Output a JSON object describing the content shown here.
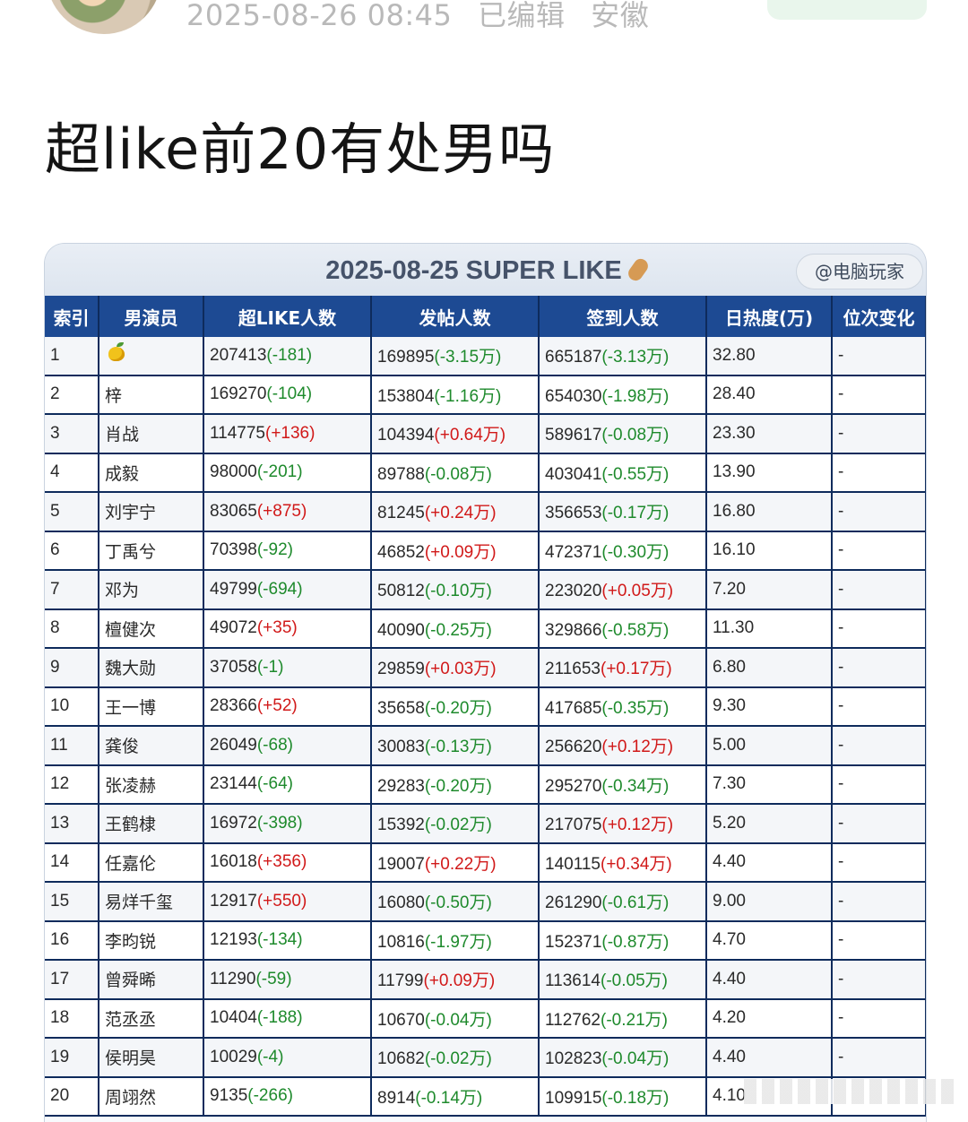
{
  "post": {
    "timestamp": "2025-08-26 08:45",
    "edited": "已编辑",
    "location": "安徽",
    "title": "超like前20有处男吗"
  },
  "card": {
    "banner_title": "2025-08-25 SUPER LIKE",
    "tag": "@电脑玩家",
    "headers": [
      "索引",
      "男演员",
      "超LIKE人数",
      "发帖人数",
      "签到人数",
      "日热度(万)",
      "位次变化"
    ],
    "rows": [
      {
        "idx": "1",
        "name": "",
        "icon": "mango-icon",
        "like": "207413",
        "like_d": "(-181)",
        "post": "169895",
        "post_d": "(-3.15万)",
        "sign": "665187",
        "sign_d": "(-3.13万)",
        "heat": "32.80",
        "rank": "-"
      },
      {
        "idx": "2",
        "name": "梓",
        "like": "169270",
        "like_d": "(-104)",
        "post": "153804",
        "post_d": "(-1.16万)",
        "sign": "654030",
        "sign_d": "(-1.98万)",
        "heat": "28.40",
        "rank": "-"
      },
      {
        "idx": "3",
        "name": "肖战",
        "like": "114775",
        "like_d": "(+136)",
        "post": "104394",
        "post_d": "(+0.64万)",
        "sign": "589617",
        "sign_d": "(-0.08万)",
        "heat": "23.30",
        "rank": "-"
      },
      {
        "idx": "4",
        "name": "成毅",
        "like": "98000",
        "like_d": "(-201)",
        "post": "89788",
        "post_d": "(-0.08万)",
        "sign": "403041",
        "sign_d": "(-0.55万)",
        "heat": "13.90",
        "rank": "-"
      },
      {
        "idx": "5",
        "name": "刘宇宁",
        "like": "83065",
        "like_d": "(+875)",
        "post": "81245",
        "post_d": "(+0.24万)",
        "sign": "356653",
        "sign_d": "(-0.17万)",
        "heat": "16.80",
        "rank": "-"
      },
      {
        "idx": "6",
        "name": "丁禹兮",
        "like": "70398",
        "like_d": "(-92)",
        "post": "46852",
        "post_d": "(+0.09万)",
        "sign": "472371",
        "sign_d": "(-0.30万)",
        "heat": "16.10",
        "rank": "-"
      },
      {
        "idx": "7",
        "name": "邓为",
        "like": "49799",
        "like_d": "(-694)",
        "post": "50812",
        "post_d": "(-0.10万)",
        "sign": "223020",
        "sign_d": "(+0.05万)",
        "heat": "7.20",
        "rank": "-"
      },
      {
        "idx": "8",
        "name": "檀健次",
        "like": "49072",
        "like_d": "(+35)",
        "post": "40090",
        "post_d": "(-0.25万)",
        "sign": "329866",
        "sign_d": "(-0.58万)",
        "heat": "11.30",
        "rank": "-"
      },
      {
        "idx": "9",
        "name": "魏大勋",
        "like": "37058",
        "like_d": "(-1)",
        "post": "29859",
        "post_d": "(+0.03万)",
        "sign": "211653",
        "sign_d": "(+0.17万)",
        "heat": "6.80",
        "rank": "-"
      },
      {
        "idx": "10",
        "name": "王一博",
        "like": "28366",
        "like_d": "(+52)",
        "post": "35658",
        "post_d": "(-0.20万)",
        "sign": "417685",
        "sign_d": "(-0.35万)",
        "heat": "9.30",
        "rank": "-"
      },
      {
        "idx": "11",
        "name": "龚俊",
        "like": "26049",
        "like_d": "(-68)",
        "post": "30083",
        "post_d": "(-0.13万)",
        "sign": "256620",
        "sign_d": "(+0.12万)",
        "heat": "5.00",
        "rank": "-"
      },
      {
        "idx": "12",
        "name": "张凌赫",
        "like": "23144",
        "like_d": "(-64)",
        "post": "29283",
        "post_d": "(-0.20万)",
        "sign": "295270",
        "sign_d": "(-0.34万)",
        "heat": "7.30",
        "rank": "-"
      },
      {
        "idx": "13",
        "name": "王鹤棣",
        "like": "16972",
        "like_d": "(-398)",
        "post": "15392",
        "post_d": "(-0.02万)",
        "sign": "217075",
        "sign_d": "(+0.12万)",
        "heat": "5.20",
        "rank": "-"
      },
      {
        "idx": "14",
        "name": "任嘉伦",
        "like": "16018",
        "like_d": "(+356)",
        "post": "19007",
        "post_d": "(+0.22万)",
        "sign": "140115",
        "sign_d": "(+0.34万)",
        "heat": "4.40",
        "rank": "-"
      },
      {
        "idx": "15",
        "name": "易烊千玺",
        "like": "12917",
        "like_d": "(+550)",
        "post": "16080",
        "post_d": "(-0.50万)",
        "sign": "261290",
        "sign_d": "(-0.61万)",
        "heat": "9.00",
        "rank": "-"
      },
      {
        "idx": "16",
        "name": "李昀锐",
        "like": "12193",
        "like_d": "(-134)",
        "post": "10816",
        "post_d": "(-1.97万)",
        "sign": "152371",
        "sign_d": "(-0.87万)",
        "heat": "4.70",
        "rank": "-"
      },
      {
        "idx": "17",
        "name": "曾舜晞",
        "like": "11290",
        "like_d": "(-59)",
        "post": "11799",
        "post_d": "(+0.09万)",
        "sign": "113614",
        "sign_d": "(-0.05万)",
        "heat": "4.40",
        "rank": "-"
      },
      {
        "idx": "18",
        "name": "范丞丞",
        "like": "10404",
        "like_d": "(-188)",
        "post": "10670",
        "post_d": "(-0.04万)",
        "sign": "112762",
        "sign_d": "(-0.21万)",
        "heat": "4.20",
        "rank": "-"
      },
      {
        "idx": "19",
        "name": "侯明昊",
        "like": "10029",
        "like_d": "(-4)",
        "post": "10682",
        "post_d": "(-0.02万)",
        "sign": "102823",
        "sign_d": "(-0.04万)",
        "heat": "4.40",
        "rank": "-"
      },
      {
        "idx": "20",
        "name": "周翊然",
        "like": "9135",
        "like_d": "(-266)",
        "post": "8914",
        "post_d": "(-0.14万)",
        "sign": "109915",
        "sign_d": "(-0.18万)",
        "heat": "4.10",
        "rank": ""
      }
    ]
  },
  "colors": {
    "header_bg": "#1d4a93",
    "negative": "#1e8a2c",
    "positive": "#d11919"
  }
}
